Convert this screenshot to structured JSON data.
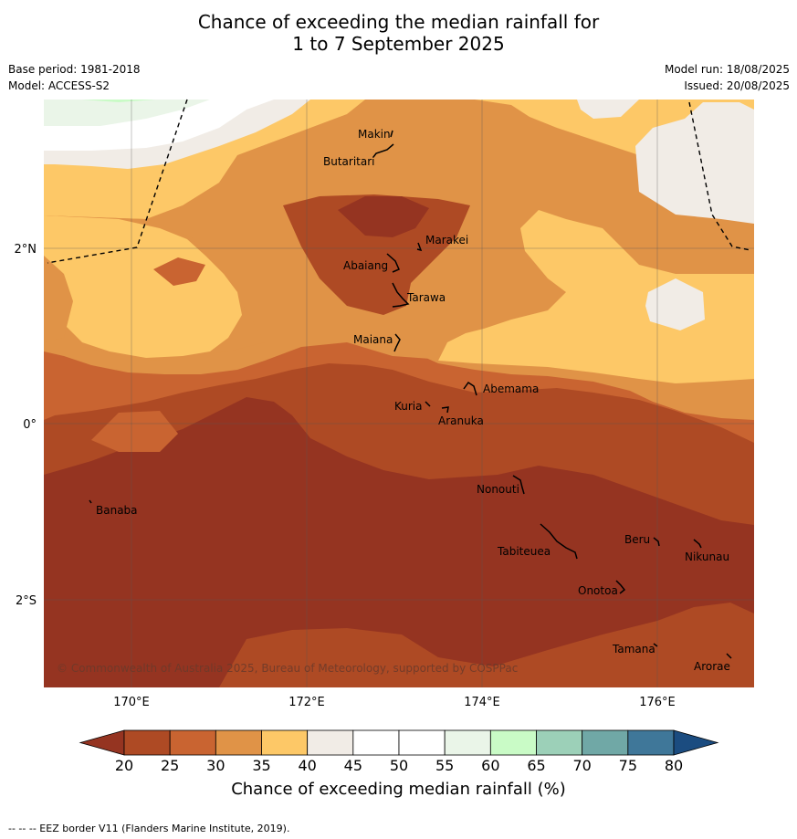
{
  "title": {
    "line1": "Chance of exceeding the median rainfall for",
    "line2": "1 to 7 September 2025"
  },
  "meta": {
    "base_period": "Base period: 1981-2018",
    "model": "Model: ACCESS-S2",
    "model_run": "Model run: 18/08/2025",
    "issued": "Issued: 20/08/2025"
  },
  "axes": {
    "lat_ticks": [
      "2°N",
      "0°",
      "2°S"
    ],
    "lon_ticks": [
      "170°E",
      "172°E",
      "174°E",
      "176°E"
    ]
  },
  "places": [
    {
      "name": "Makin"
    },
    {
      "name": "Butaritari"
    },
    {
      "name": "Marakei"
    },
    {
      "name": "Abaiang"
    },
    {
      "name": "Tarawa"
    },
    {
      "name": "Maiana"
    },
    {
      "name": "Abemama"
    },
    {
      "name": "Kuria"
    },
    {
      "name": "Aranuka"
    },
    {
      "name": "Banaba"
    },
    {
      "name": "Nonouti"
    },
    {
      "name": "Beru"
    },
    {
      "name": "Tabiteuea"
    },
    {
      "name": "Nikunau"
    },
    {
      "name": "Onotoa"
    },
    {
      "name": "Tamana"
    },
    {
      "name": "Arorae"
    }
  ],
  "copyright": "© Commonwealth of Australia 2025, Bureau of Meteorology, supported by COSPPac",
  "colorbar": {
    "ticks": [
      "20",
      "25",
      "30",
      "35",
      "40",
      "45",
      "50",
      "55",
      "60",
      "65",
      "70",
      "75",
      "80"
    ],
    "colors": [
      "#953421",
      "#ae4a24",
      "#c96431",
      "#e09347",
      "#fdc867",
      "#f1ece6",
      "#ffffff",
      "#ffffff",
      "#eaf5e8",
      "#c9fbc6",
      "#9cd0b8",
      "#70a8a6",
      "#3f7799",
      "#1b4c80"
    ],
    "title": "Chance of exceeding median rainfall (%)"
  },
  "footer": "--  --  -- EEZ border V11 (Flanders Marine Institute, 2019)."
}
